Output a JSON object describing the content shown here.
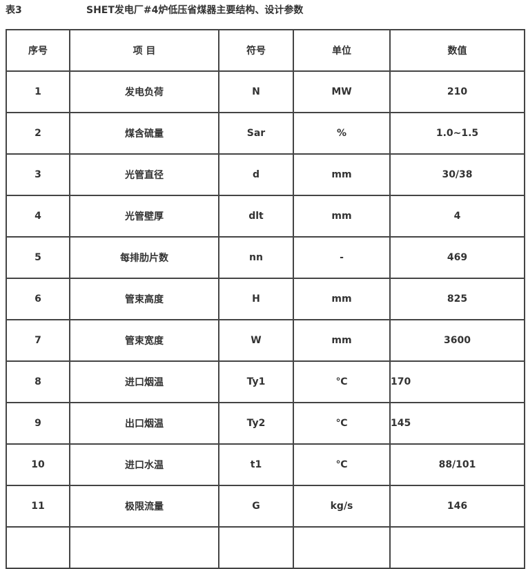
{
  "table_label": "表3",
  "title": "SHET发电厂#4炉低压省煤器主要结构、设计参数",
  "headers": [
    "序号",
    "项 目",
    "符号",
    "单位",
    "数值"
  ],
  "rows": [
    {
      "no": "1",
      "item": "发电负荷",
      "symbol": "N",
      "unit": "MW",
      "value": "210",
      "align": "center"
    },
    {
      "no": "2",
      "item": "煤含硫量",
      "symbol": "Sar",
      "unit": "%",
      "value": "1.0~1.5",
      "align": "center"
    },
    {
      "no": "3",
      "item": "光管直径",
      "symbol": "d",
      "unit": "mm",
      "value": "30/38",
      "align": "center"
    },
    {
      "no": "4",
      "item": "光管壁厚",
      "symbol": "dlt",
      "unit": "mm",
      "value": "4",
      "align": "center"
    },
    {
      "no": "5",
      "item": "每排肋片数",
      "symbol": "nn",
      "unit": "-",
      "value": "469",
      "align": "center"
    },
    {
      "no": "6",
      "item": "管束高度",
      "symbol": "H",
      "unit": "mm",
      "value": "825",
      "align": "center"
    },
    {
      "no": "7",
      "item": "管束宽度",
      "symbol": "W",
      "unit": "mm",
      "value": "3600",
      "align": "center"
    },
    {
      "no": "8",
      "item": "进口烟温",
      "symbol": "Ty1",
      "unit": "℃",
      "value": "170",
      "align": "left"
    },
    {
      "no": "9",
      "item": "出口烟温",
      "symbol": "Ty2",
      "unit": "℃",
      "value": "145",
      "align": "left"
    },
    {
      "no": "10",
      "item": "进口水温",
      "symbol": "t1",
      "unit": "℃",
      "value": "88/101",
      "align": "center"
    },
    {
      "no": "11",
      "item": "极限流量",
      "symbol": "G",
      "unit": "kg/s",
      "value": "146",
      "align": "center"
    },
    {
      "no": "",
      "item": "",
      "symbol": "",
      "unit": "",
      "value": "",
      "align": "center"
    }
  ]
}
